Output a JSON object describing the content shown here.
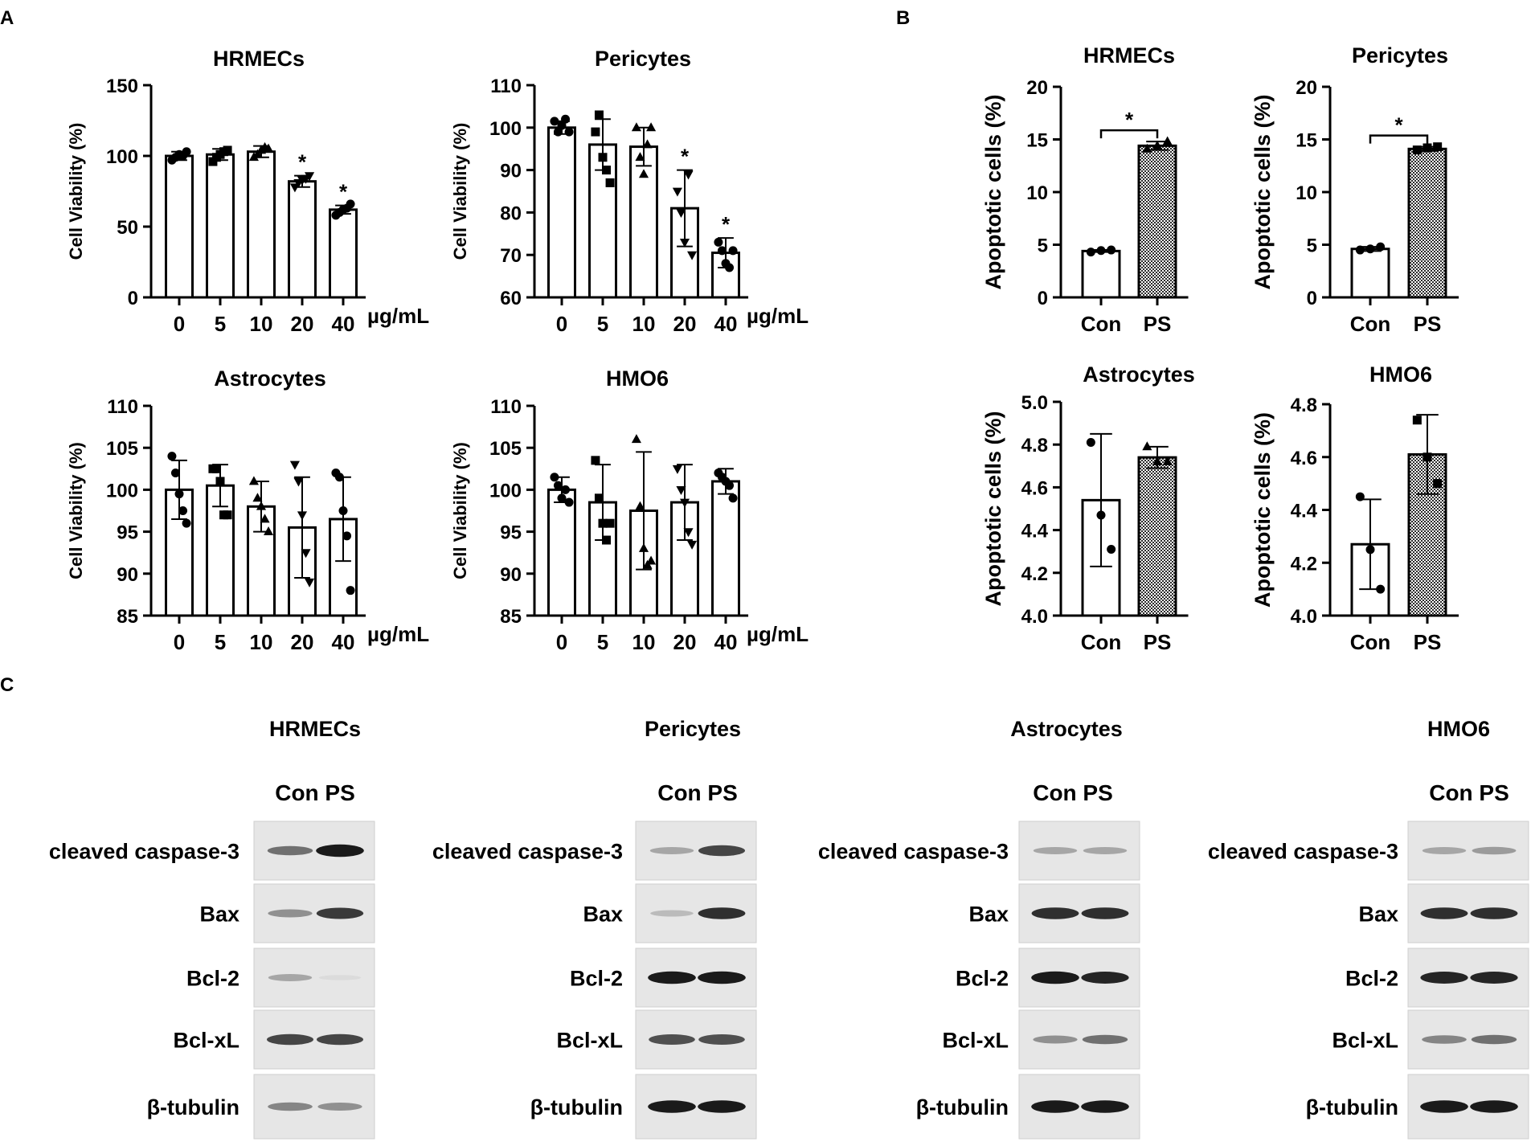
{
  "panels": {
    "A": "A",
    "B": "B",
    "C": "C"
  },
  "charts_a_unit": "µg/mL",
  "chart_data": [
    {
      "id": "a1",
      "type": "bar",
      "title": "HRMECs",
      "ylabel": "Cell Viability (%)",
      "xlabel": "",
      "categories": [
        "0",
        "5",
        "10",
        "20",
        "40"
      ],
      "values": [
        100,
        101,
        103,
        82,
        62
      ],
      "error": [
        3,
        4,
        4,
        4,
        3
      ],
      "points": [
        [
          97,
          99,
          101,
          100,
          103
        ],
        [
          96,
          99,
          101,
          103,
          104
        ],
        [
          99,
          101,
          104,
          106,
          105
        ],
        [
          78,
          81,
          83,
          84,
          86
        ],
        [
          58,
          60,
          62,
          63,
          66
        ]
      ],
      "markers": [
        "circle",
        "square",
        "triangle",
        "triangle-down",
        "circle"
      ],
      "significance": [
        "",
        "",
        "",
        "*",
        "*"
      ],
      "ylim": [
        0,
        150
      ],
      "yticks": [
        0,
        50,
        100,
        150
      ]
    },
    {
      "id": "a2",
      "type": "bar",
      "title": "Pericytes",
      "ylabel": "Cell Viability (%)",
      "xlabel": "",
      "categories": [
        "0",
        "5",
        "10",
        "20",
        "40"
      ],
      "values": [
        100,
        96,
        95.5,
        81,
        70.5
      ],
      "error": [
        1.5,
        6,
        4.5,
        9,
        3.5
      ],
      "points": [
        [
          101.5,
          99,
          100.5,
          102,
          99
        ],
        [
          99,
          103,
          93,
          90,
          87
        ],
        [
          100,
          93,
          89,
          96,
          100
        ],
        [
          85,
          80,
          73,
          89,
          70
        ],
        [
          73,
          71,
          68,
          67,
          71
        ]
      ],
      "markers": [
        "circle",
        "square",
        "triangle",
        "triangle-down",
        "circle"
      ],
      "significance": [
        "",
        "",
        "",
        "*",
        "*"
      ],
      "ylim": [
        60,
        110
      ],
      "yticks": [
        60,
        70,
        80,
        90,
        100,
        110
      ]
    },
    {
      "id": "a3",
      "type": "bar",
      "title": "Astrocytes",
      "ylabel": "Cell Viability (%)",
      "xlabel": "",
      "categories": [
        "0",
        "5",
        "10",
        "20",
        "40"
      ],
      "values": [
        100,
        100.5,
        98,
        95.5,
        96.5
      ],
      "error": [
        3.5,
        2.5,
        3,
        6,
        5
      ],
      "points": [
        [
          104,
          102,
          99.5,
          97.5,
          96
        ],
        [
          102.5,
          102.5,
          101,
          97,
          97
        ],
        [
          101,
          99,
          98,
          96.5,
          95
        ],
        [
          103,
          101,
          97,
          92.5,
          89
        ],
        [
          102,
          101.5,
          97.5,
          94.5,
          88
        ]
      ],
      "markers": [
        "circle",
        "square",
        "triangle",
        "triangle-down",
        "circle"
      ],
      "significance": [
        "",
        "",
        "",
        "",
        ""
      ],
      "ylim": [
        85,
        110
      ],
      "yticks": [
        85,
        90,
        95,
        100,
        105,
        110
      ]
    },
    {
      "id": "a4",
      "type": "bar",
      "title": "HMO6",
      "ylabel": "Cell Viability (%)",
      "xlabel": "",
      "categories": [
        "0",
        "5",
        "10",
        "20",
        "40"
      ],
      "values": [
        100,
        98.5,
        97.5,
        98.5,
        101
      ],
      "error": [
        1.5,
        4.5,
        7,
        4.5,
        1.5
      ],
      "points": [
        [
          101.5,
          100.5,
          99,
          100,
          98.5
        ],
        [
          103.5,
          99,
          96,
          94,
          96
        ],
        [
          106,
          98,
          93,
          91,
          91.5
        ],
        [
          102.5,
          100,
          98.5,
          95,
          93.5
        ],
        [
          102,
          101.5,
          101,
          100.5,
          99
        ]
      ],
      "markers": [
        "circle",
        "square",
        "triangle",
        "triangle-down",
        "circle"
      ],
      "significance": [
        "",
        "",
        "",
        "",
        ""
      ],
      "ylim": [
        85,
        110
      ],
      "yticks": [
        85,
        90,
        95,
        100,
        105,
        110
      ]
    },
    {
      "id": "b1",
      "type": "bar",
      "title": "HRMECs",
      "ylabel": "Apoptotic cells (%)",
      "xlabel": "",
      "categories": [
        "Con",
        "PS"
      ],
      "values": [
        4.4,
        14.4
      ],
      "error": [
        0.1,
        0.4
      ],
      "points": [
        [
          4.3,
          4.45,
          4.5
        ],
        [
          14.1,
          14.4,
          14.8
        ]
      ],
      "markers": [
        "circle",
        "triangle"
      ],
      "pattern": [
        "none",
        "checker"
      ],
      "significance_bracket": "*",
      "ylim": [
        0,
        20
      ],
      "yticks": [
        0,
        5,
        10,
        15,
        20
      ]
    },
    {
      "id": "b2",
      "type": "bar",
      "title": "Pericytes",
      "ylabel": "Apoptotic cells (%)",
      "xlabel": "",
      "categories": [
        "Con",
        "PS"
      ],
      "values": [
        4.6,
        14.1
      ],
      "error": [
        0.2,
        0.2
      ],
      "points": [
        [
          4.5,
          4.6,
          4.8
        ],
        [
          14.0,
          14.2,
          14.3
        ]
      ],
      "markers": [
        "circle",
        "square"
      ],
      "pattern": [
        "none",
        "checker"
      ],
      "significance_bracket": "*",
      "ylim": [
        0,
        20
      ],
      "yticks": [
        0,
        5,
        10,
        15,
        20
      ]
    },
    {
      "id": "b3",
      "type": "bar",
      "title": "Astrocytes",
      "ylabel": "Apoptotic cells (%)",
      "xlabel": "",
      "categories": [
        "Con",
        "PS"
      ],
      "values": [
        4.54,
        4.74
      ],
      "error": [
        0.31,
        0.05
      ],
      "points": [
        [
          4.81,
          4.47,
          4.31
        ],
        [
          4.79,
          4.72,
          4.72
        ]
      ],
      "markers": [
        "circle",
        "triangle"
      ],
      "pattern": [
        "none",
        "checker"
      ],
      "significance_bracket": "",
      "ylim": [
        4.0,
        5.0
      ],
      "yticks": [
        4.0,
        4.2,
        4.4,
        4.6,
        4.8,
        5.0
      ]
    },
    {
      "id": "b4",
      "type": "bar",
      "title": "HMO6",
      "ylabel": "Apoptotic cells (%)",
      "xlabel": "",
      "categories": [
        "Con",
        "PS"
      ],
      "values": [
        4.27,
        4.61
      ],
      "error": [
        0.17,
        0.15
      ],
      "points": [
        [
          4.45,
          4.25,
          4.1
        ],
        [
          4.74,
          4.6,
          4.5
        ]
      ],
      "markers": [
        "circle",
        "square"
      ],
      "pattern": [
        "none",
        "checker"
      ],
      "significance_bracket": "",
      "ylim": [
        4.0,
        4.8
      ],
      "yticks": [
        4.0,
        4.2,
        4.4,
        4.6,
        4.8
      ]
    }
  ],
  "blots": {
    "lanes": "Con PS",
    "proteins": [
      "cleaved caspase-3",
      "Bax",
      "Bcl-2",
      "Bcl-xL",
      "β-tubulin"
    ],
    "panels": [
      {
        "title": "HRMECs",
        "intensity": [
          [
            0.55,
            0.95
          ],
          [
            0.4,
            0.8
          ],
          [
            0.3,
            0.05
          ],
          [
            0.75,
            0.75
          ],
          [
            0.45,
            0.4
          ]
        ]
      },
      {
        "title": "Pericytes",
        "intensity": [
          [
            0.3,
            0.75
          ],
          [
            0.2,
            0.85
          ],
          [
            0.95,
            0.95
          ],
          [
            0.7,
            0.7
          ],
          [
            0.95,
            0.95
          ]
        ]
      },
      {
        "title": "Astrocytes",
        "intensity": [
          [
            0.3,
            0.3
          ],
          [
            0.85,
            0.85
          ],
          [
            0.95,
            0.9
          ],
          [
            0.4,
            0.55
          ],
          [
            0.95,
            0.95
          ]
        ]
      },
      {
        "title": "HMO6",
        "intensity": [
          [
            0.3,
            0.35
          ],
          [
            0.85,
            0.85
          ],
          [
            0.9,
            0.9
          ],
          [
            0.45,
            0.55
          ],
          [
            0.95,
            0.95
          ]
        ]
      }
    ]
  }
}
